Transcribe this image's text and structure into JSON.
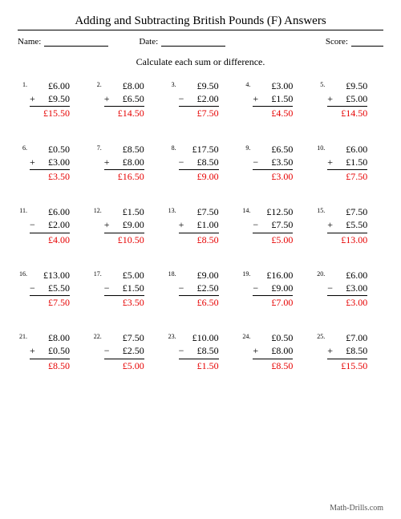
{
  "title": "Adding and Subtracting British Pounds (F) Answers",
  "meta": {
    "name_label": "Name:",
    "date_label": "Date:",
    "score_label": "Score:"
  },
  "instruction": "Calculate each sum or difference.",
  "footer": "Math-Drills.com",
  "colors": {
    "answer": "#e60000",
    "text": "#000000",
    "background": "#ffffff"
  },
  "problems": [
    {
      "n": "1.",
      "a": "£6.00",
      "op": "+",
      "b": "£9.50",
      "ans": "£15.50"
    },
    {
      "n": "2.",
      "a": "£8.00",
      "op": "+",
      "b": "£6.50",
      "ans": "£14.50"
    },
    {
      "n": "3.",
      "a": "£9.50",
      "op": "−",
      "b": "£2.00",
      "ans": "£7.50"
    },
    {
      "n": "4.",
      "a": "£3.00",
      "op": "+",
      "b": "£1.50",
      "ans": "£4.50"
    },
    {
      "n": "5.",
      "a": "£9.50",
      "op": "+",
      "b": "£5.00",
      "ans": "£14.50"
    },
    {
      "n": "6.",
      "a": "£0.50",
      "op": "+",
      "b": "£3.00",
      "ans": "£3.50"
    },
    {
      "n": "7.",
      "a": "£8.50",
      "op": "+",
      "b": "£8.00",
      "ans": "£16.50"
    },
    {
      "n": "8.",
      "a": "£17.50",
      "op": "−",
      "b": "£8.50",
      "ans": "£9.00"
    },
    {
      "n": "9.",
      "a": "£6.50",
      "op": "−",
      "b": "£3.50",
      "ans": "£3.00"
    },
    {
      "n": "10.",
      "a": "£6.00",
      "op": "+",
      "b": "£1.50",
      "ans": "£7.50"
    },
    {
      "n": "11.",
      "a": "£6.00",
      "op": "−",
      "b": "£2.00",
      "ans": "£4.00"
    },
    {
      "n": "12.",
      "a": "£1.50",
      "op": "+",
      "b": "£9.00",
      "ans": "£10.50"
    },
    {
      "n": "13.",
      "a": "£7.50",
      "op": "+",
      "b": "£1.00",
      "ans": "£8.50"
    },
    {
      "n": "14.",
      "a": "£12.50",
      "op": "−",
      "b": "£7.50",
      "ans": "£5.00"
    },
    {
      "n": "15.",
      "a": "£7.50",
      "op": "+",
      "b": "£5.50",
      "ans": "£13.00"
    },
    {
      "n": "16.",
      "a": "£13.00",
      "op": "−",
      "b": "£5.50",
      "ans": "£7.50"
    },
    {
      "n": "17.",
      "a": "£5.00",
      "op": "−",
      "b": "£1.50",
      "ans": "£3.50"
    },
    {
      "n": "18.",
      "a": "£9.00",
      "op": "−",
      "b": "£2.50",
      "ans": "£6.50"
    },
    {
      "n": "19.",
      "a": "£16.00",
      "op": "−",
      "b": "£9.00",
      "ans": "£7.00"
    },
    {
      "n": "20.",
      "a": "£6.00",
      "op": "−",
      "b": "£3.00",
      "ans": "£3.00"
    },
    {
      "n": "21.",
      "a": "£8.00",
      "op": "+",
      "b": "£0.50",
      "ans": "£8.50"
    },
    {
      "n": "22.",
      "a": "£7.50",
      "op": "−",
      "b": "£2.50",
      "ans": "£5.00"
    },
    {
      "n": "23.",
      "a": "£10.00",
      "op": "−",
      "b": "£8.50",
      "ans": "£1.50"
    },
    {
      "n": "24.",
      "a": "£0.50",
      "op": "+",
      "b": "£8.00",
      "ans": "£8.50"
    },
    {
      "n": "25.",
      "a": "£7.00",
      "op": "+",
      "b": "£8.50",
      "ans": "£15.50"
    }
  ]
}
